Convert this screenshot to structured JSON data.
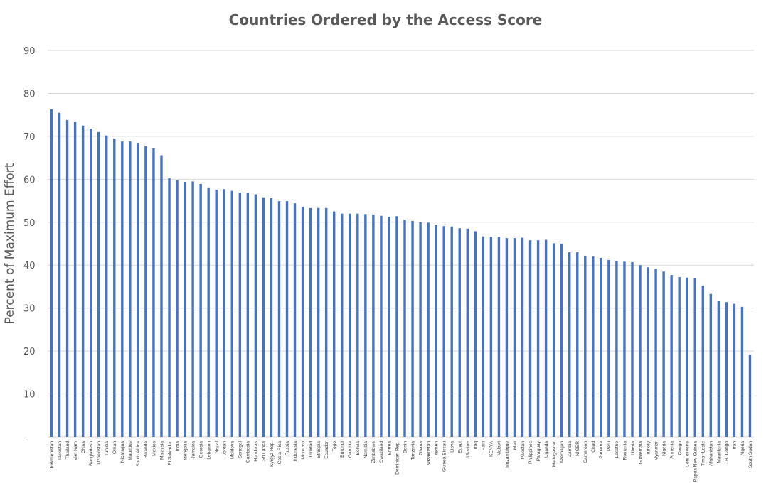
{
  "chart_data": {
    "type": "bar",
    "title": "Countries Ordered by the Access Score",
    "ylabel": "Percent of Maximum Effort",
    "xlabel": "",
    "ylim": [
      0,
      90
    ],
    "yticks": [
      {
        "value": 0,
        "label": "-"
      },
      {
        "value": 10,
        "label": "10"
      },
      {
        "value": 20,
        "label": "20"
      },
      {
        "value": 30,
        "label": "30"
      },
      {
        "value": 40,
        "label": "40"
      },
      {
        "value": 50,
        "label": "50"
      },
      {
        "value": 60,
        "label": "60"
      },
      {
        "value": 70,
        "label": "70"
      },
      {
        "value": 80,
        "label": "80"
      },
      {
        "value": 90,
        "label": "90"
      }
    ],
    "grid": true,
    "legend": "none",
    "bar_color": "#4472c4",
    "categories": [
      "Turkmenistan",
      "Tajikistan",
      "Thailand",
      "Viet Nam",
      "China",
      "Bangladesh",
      "Uzbekistan",
      "Tunisia",
      "Oman",
      "Nicaragua",
      "Mauritius",
      "South Africa",
      "Rwanda",
      "Mexico",
      "Malaysia",
      "El Salvador",
      "India",
      "Mongolia",
      "Jamaica",
      "Georgia",
      "Lebanon",
      "Nepal",
      "Jordan",
      "Moldova",
      "Senegal",
      "Cambodia",
      "Honduras",
      "Sri Lanka",
      "Kyrgyz Rep.",
      "Costa Rica",
      "Russia",
      "Indonesia",
      "Morocco",
      "Trinidad",
      "Ethiopia",
      "Ecuador",
      "Togo",
      "Burundi",
      "Gambia",
      "Bolivia",
      "Namibia",
      "Zimbabwe",
      "Swaziland",
      "Eritrea",
      "Dominican Rep.",
      "Benin",
      "Tanzania",
      "Ghana",
      "Kazakhstan",
      "Yemen",
      "Guinea Bissau",
      "Libya",
      "Egypt",
      "Ukraine",
      "Iraq",
      "Haiti",
      "KENYA",
      "Malawi",
      "Mozambique",
      "Mali",
      "Pakistan",
      "Philippines",
      "Paraguay",
      "Uganda",
      "Madagascar",
      "Azerbaijan",
      "Zambia",
      "NIGER",
      "Cameroon",
      "Chad",
      "Panama",
      "Peru",
      "Lesotho",
      "Romania",
      "Liberia",
      "Guatemala",
      "Turkey",
      "Myanmar",
      "Nigeria",
      "Armenia",
      "Congo",
      "Côte d'Ivoire",
      "Papua New Guinea",
      "Timor-Leste",
      "Afghanistan",
      "Mauritania",
      "D.R. Congo",
      "Iran",
      "Algeria",
      "South Sudan"
    ],
    "values": [
      76.3,
      75.5,
      73.8,
      73.3,
      72.5,
      71.8,
      71.0,
      70.2,
      69.5,
      68.8,
      68.8,
      68.5,
      67.7,
      67.2,
      65.6,
      60.2,
      59.8,
      59.4,
      59.5,
      58.9,
      58.1,
      57.6,
      57.7,
      57.3,
      56.9,
      56.8,
      56.5,
      55.8,
      55.6,
      54.9,
      54.9,
      54.4,
      53.6,
      53.3,
      53.3,
      53.3,
      52.5,
      52.0,
      52.0,
      52.0,
      51.9,
      51.8,
      51.5,
      51.3,
      51.4,
      50.6,
      50.3,
      50.0,
      49.9,
      49.3,
      49.1,
      49.0,
      48.6,
      48.5,
      47.9,
      46.7,
      46.6,
      46.6,
      46.3,
      46.3,
      46.4,
      45.8,
      45.8,
      45.9,
      45.1,
      45.0,
      43.0,
      43.0,
      42.2,
      42.0,
      41.7,
      41.2,
      40.9,
      40.8,
      40.7,
      40.0,
      39.5,
      39.2,
      38.5,
      37.7,
      37.2,
      37.1,
      36.9,
      35.2,
      33.3,
      31.6,
      31.4,
      31.0,
      30.3,
      19.2
    ]
  }
}
